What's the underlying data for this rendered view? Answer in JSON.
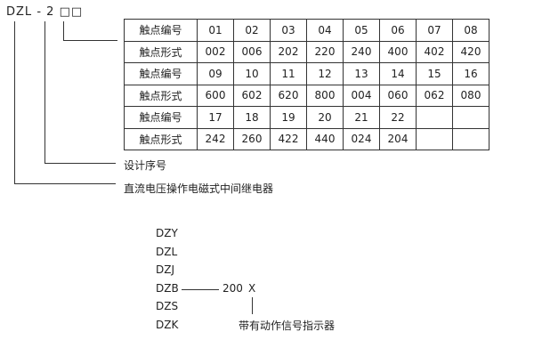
{
  "model_code": {
    "prefix": "DZL",
    "dash": "-",
    "digit": "2",
    "boxes": "□□"
  },
  "table": {
    "rows": [
      {
        "label": "触点编号",
        "values": [
          "01",
          "02",
          "03",
          "04",
          "05",
          "06",
          "07",
          "08"
        ]
      },
      {
        "label": "触点形式",
        "values": [
          "002",
          "006",
          "202",
          "220",
          "240",
          "400",
          "402",
          "420"
        ]
      },
      {
        "label": "触点编号",
        "values": [
          "09",
          "10",
          "11",
          "12",
          "13",
          "14",
          "15",
          "16"
        ]
      },
      {
        "label": "触点形式",
        "values": [
          "600",
          "602",
          "620",
          "800",
          "004",
          "060",
          "062",
          "080"
        ]
      },
      {
        "label": "触点编号",
        "values": [
          "17",
          "18",
          "19",
          "20",
          "21",
          "22",
          "",
          ""
        ]
      },
      {
        "label": "触点形式",
        "values": [
          "242",
          "260",
          "422",
          "440",
          "024",
          "204",
          "",
          ""
        ]
      }
    ]
  },
  "labels": {
    "design_no": "设计序号",
    "relay_type": "直流电压操作电磁式中间继电器"
  },
  "series": {
    "models": [
      "DZY",
      "DZL",
      "DZJ",
      "DZB",
      "DZS",
      "DZK"
    ],
    "code": "200",
    "suffix": "X",
    "suffix_label": "带有动作信号指示器"
  }
}
